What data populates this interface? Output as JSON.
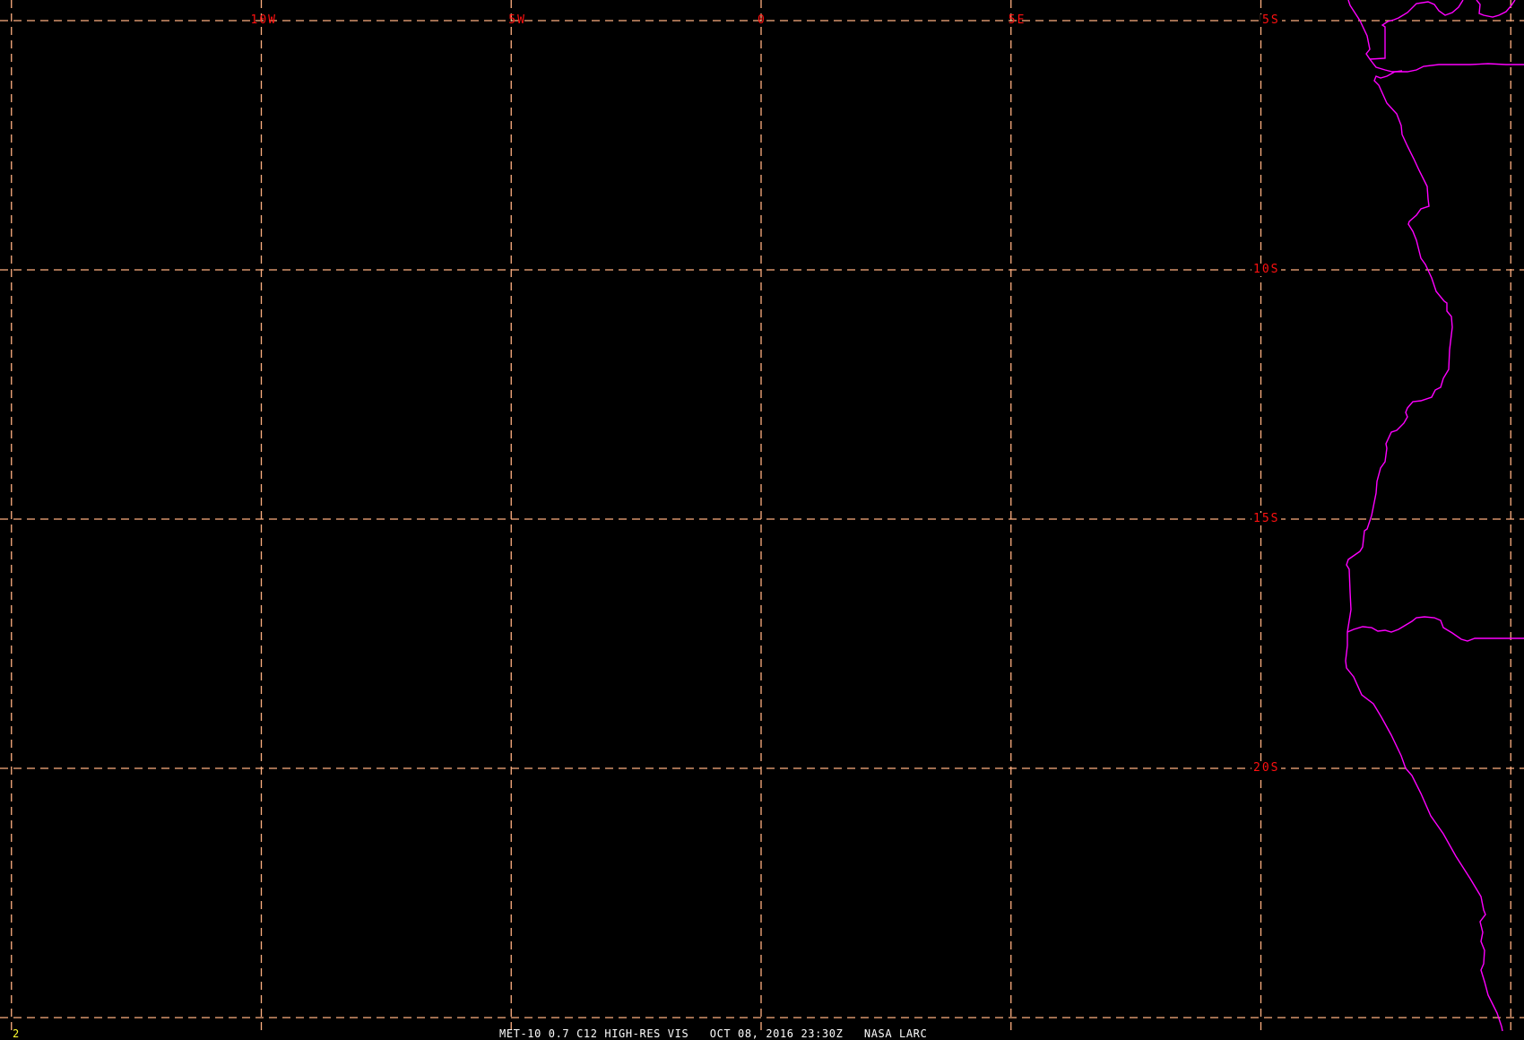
{
  "map": {
    "background": "#000000",
    "grid_color": "#ffb080",
    "label_color": "#ff1010",
    "coastline_color": "#ff00ff",
    "longitude_labels": [
      {
        "lon": -10,
        "text": "10W"
      },
      {
        "lon": -5,
        "text": "5W"
      },
      {
        "lon": 0,
        "text": "0"
      },
      {
        "lon": 5,
        "text": "5E"
      }
    ],
    "latitude_labels": [
      {
        "lat": -5,
        "text": "5S"
      },
      {
        "lat": -10,
        "text": "10S"
      },
      {
        "lat": -15,
        "text": "15S"
      },
      {
        "lat": -20,
        "text": "20S"
      }
    ],
    "grid_longitudes": [
      -15,
      -10,
      -5,
      0,
      5,
      10,
      15
    ],
    "grid_latitudes": [
      -5,
      -10,
      -15,
      -20,
      -25
    ]
  },
  "footer": {
    "frame_number": "2",
    "caption": "MET-10 0.7 C12 HIGH-RES VIS   OCT 08, 2016 23:30Z   NASA LARC"
  }
}
